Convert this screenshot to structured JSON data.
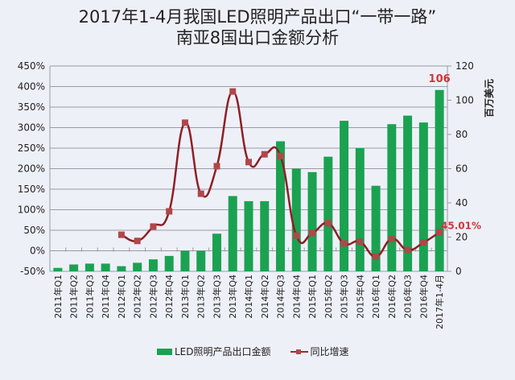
{
  "title_line1": "2017年1-4月我国LED照明产品出口“一带一路”",
  "title_line2": "南亚8国出口金额分析",
  "legend": {
    "bar_label": "LED照明产品出口金额",
    "line_label": "同比增速"
  },
  "right_axis_title": "百万美元",
  "annotations": {
    "last_bar_value": "106",
    "last_growth": "45.01%"
  },
  "colors": {
    "bar": "#1aa251",
    "line": "#8e1f24",
    "marker": "#b0474a",
    "annotation": "#d0353a",
    "grid": "#9a9aa6"
  },
  "chart_data": {
    "type": "bar+line",
    "title": "2017年1-4月我国LED照明产品出口“一带一路”南亚8国出口金额分析",
    "categories": [
      "2011年Q1",
      "2011年Q2",
      "2011年Q3",
      "2011年Q4",
      "2012年Q1",
      "2012年Q2",
      "2012年Q3",
      "2012年Q4",
      "2013年Q1",
      "2013年Q2",
      "2013年Q3",
      "2013年Q4",
      "2014年Q1",
      "2014年Q2",
      "2014年Q3",
      "2014年Q4",
      "2015年Q1",
      "2015年Q2",
      "2015年Q3",
      "2015年Q4",
      "2016年Q1",
      "2016年Q2",
      "2016年Q3",
      "2016年Q4",
      "2017年1-4月"
    ],
    "series": [
      {
        "name": "LED照明产品出口金额",
        "type": "bar",
        "axis": "right",
        "unit": "百万美元",
        "values": [
          2,
          4,
          4.5,
          4.5,
          3,
          5,
          7,
          9,
          12,
          12,
          22,
          44,
          41,
          41,
          76,
          60,
          58,
          67,
          88,
          72,
          50,
          86,
          91,
          87,
          106
        ]
      },
      {
        "name": "同比增速",
        "type": "line",
        "axis": "left",
        "unit": "%",
        "values": [
          null,
          null,
          null,
          null,
          39,
          24,
          59,
          96,
          312,
          139,
          206,
          388,
          216,
          235,
          231,
          37,
          43,
          67,
          18,
          22,
          -14,
          29,
          2,
          20,
          45.01
        ]
      }
    ],
    "left_axis": {
      "ticks": [
        "-50%",
        "0%",
        "50%",
        "100%",
        "150%",
        "200%",
        "250%",
        "300%",
        "350%",
        "400%",
        "450%"
      ],
      "range": [
        -50,
        450
      ]
    },
    "right_axis": {
      "label": "百万美元",
      "ticks": [
        "0",
        "20",
        "40",
        "60",
        "80",
        "100",
        "120"
      ],
      "range": [
        0,
        120
      ]
    },
    "grid": true,
    "legend_position": "bottom"
  }
}
